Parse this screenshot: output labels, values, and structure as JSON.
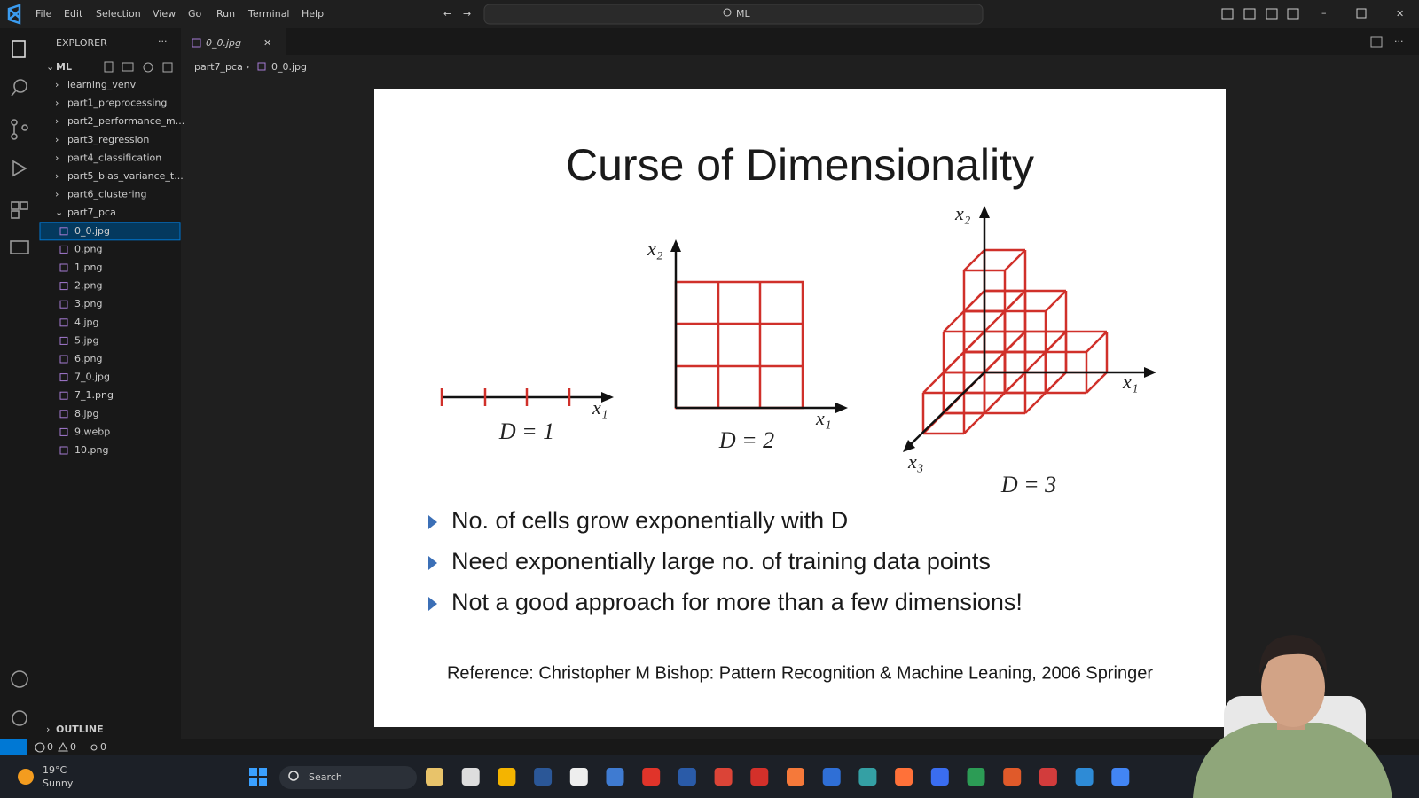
{
  "menu": [
    "File",
    "Edit",
    "Selection",
    "View",
    "Go",
    "Run",
    "Terminal",
    "Help"
  ],
  "command_center": "ML",
  "explorer": {
    "header": "EXPLORER",
    "root": "ML",
    "items": [
      {
        "label": "learning_venv",
        "kind": "folder"
      },
      {
        "label": "part1_preprocessing",
        "kind": "folder"
      },
      {
        "label": "part2_performance_m...",
        "kind": "folder"
      },
      {
        "label": "part3_regression",
        "kind": "folder"
      },
      {
        "label": "part4_classification",
        "kind": "folder"
      },
      {
        "label": "part5_bias_variance_t...",
        "kind": "folder"
      },
      {
        "label": "part6_clustering",
        "kind": "folder"
      },
      {
        "label": "part7_pca",
        "kind": "folder-open"
      },
      {
        "label": "0_0.jpg",
        "kind": "file",
        "selected": true
      },
      {
        "label": "0.png",
        "kind": "file"
      },
      {
        "label": "1.png",
        "kind": "file"
      },
      {
        "label": "2.png",
        "kind": "file"
      },
      {
        "label": "3.png",
        "kind": "file"
      },
      {
        "label": "4.jpg",
        "kind": "file"
      },
      {
        "label": "5.jpg",
        "kind": "file"
      },
      {
        "label": "6.png",
        "kind": "file"
      },
      {
        "label": "7_0.jpg",
        "kind": "file"
      },
      {
        "label": "7_1.png",
        "kind": "file"
      },
      {
        "label": "8.jpg",
        "kind": "file"
      },
      {
        "label": "9.webp",
        "kind": "file"
      },
      {
        "label": "10.png",
        "kind": "file"
      }
    ],
    "outline": "OUTLINE"
  },
  "tab": "0_0.jpg",
  "breadcrumb": [
    "part7_pca",
    "0_0.jpg"
  ],
  "slide": {
    "title": "Curse of Dimensionality",
    "d1": {
      "axis_x": "x₁",
      "label": "D = 1"
    },
    "d2": {
      "axis_x": "x₁",
      "axis_y": "x₂",
      "label": "D = 2"
    },
    "d3": {
      "axis_x": "x₁",
      "axis_y": "x₂",
      "axis_z": "x₃",
      "label": "D = 3"
    },
    "bullets": [
      "No. of cells grow exponentially with D",
      "Need exponentially large no. of training data points",
      "Not a good approach for more than a few dimensions!"
    ],
    "reference": "Reference: Christopher M Bishop: Pattern Recognition & Machine Leaning, 2006 Springer"
  },
  "status": {
    "errors": "0",
    "warnings": "0",
    "ports": "0"
  },
  "taskbar": {
    "temperature": "19°C",
    "weather": "Sunny",
    "search": "Search"
  }
}
